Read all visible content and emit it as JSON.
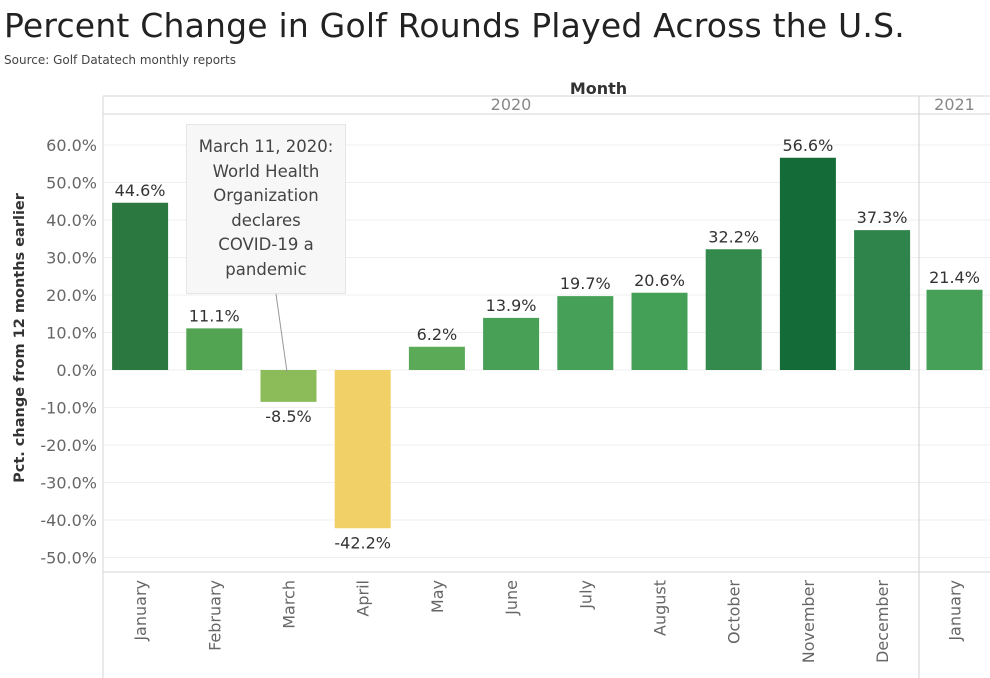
{
  "title": "Percent Change in Golf Rounds Played Across the U.S.",
  "source": "Source: Golf Datatech monthly reports",
  "annotation": "March 11, 2020:\nWorld Health\nOrganization\ndeclares\nCOVID-19 a\npandemic",
  "chart_data": {
    "type": "bar",
    "xlabel": "Month",
    "ylabel": "Pct. change from 12 months earlier",
    "ylim": [
      -50,
      60
    ],
    "yticks": [
      "60.0%",
      "50.0%",
      "40.0%",
      "30.0%",
      "20.0%",
      "10.0%",
      "0.0%",
      "-10.0%",
      "-20.0%",
      "-30.0%",
      "-40.0%",
      "-50.0%"
    ],
    "groups": [
      {
        "label": "2020",
        "categories": [
          "January",
          "February",
          "March",
          "April",
          "May",
          "June",
          "July",
          "August",
          "October",
          "November",
          "December"
        ]
      },
      {
        "label": "2021",
        "categories": [
          "January"
        ]
      }
    ],
    "categories": [
      "January",
      "February",
      "March",
      "April",
      "May",
      "June",
      "July",
      "August",
      "October",
      "November",
      "December",
      "January"
    ],
    "values": [
      44.6,
      11.1,
      -8.5,
      -42.2,
      6.2,
      13.9,
      19.7,
      20.6,
      32.2,
      56.6,
      37.3,
      21.4
    ],
    "value_labels": [
      "44.6%",
      "11.1%",
      "-8.5%",
      "-42.2%",
      "6.2%",
      "13.9%",
      "19.7%",
      "20.6%",
      "32.2%",
      "56.6%",
      "37.3%",
      "21.4%"
    ],
    "colors": [
      "#2b7840",
      "#52a352",
      "#8cbb59",
      "#f2d068",
      "#5aaa57",
      "#48a057",
      "#46a057",
      "#44a057",
      "#348a4c",
      "#146b37",
      "#2f844b",
      "#46a057"
    ],
    "grid": true,
    "legend": "none"
  }
}
